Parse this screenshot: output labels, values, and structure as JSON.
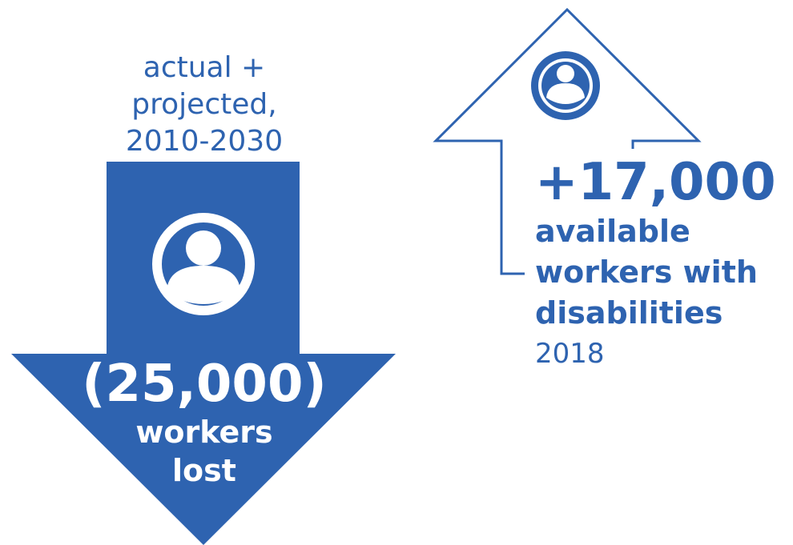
{
  "left_figure": {
    "caption": {
      "line1": "actual +",
      "line2": "projected,",
      "line3": "2010-2030"
    },
    "value": "(25,000)",
    "label": {
      "line1": "workers",
      "line2": "lost"
    },
    "icon": "person-circle-icon",
    "arrow": "down-arrow"
  },
  "right_figure": {
    "value": "+17,000",
    "label": {
      "line1": "available",
      "line2": "workers with",
      "line3": "disabilities"
    },
    "year": "2018",
    "icon": "person-circle-icon",
    "arrow": "up-arrow-outline"
  },
  "colors": {
    "primary_blue": "#2e63b0",
    "background": "#ffffff"
  }
}
